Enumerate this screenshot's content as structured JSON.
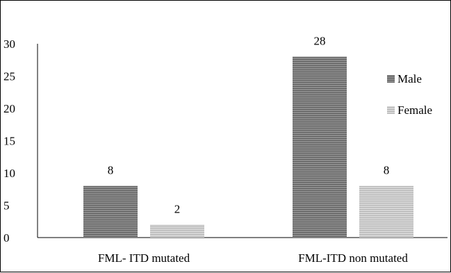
{
  "chart_data": {
    "type": "bar",
    "title": "",
    "xlabel": "",
    "ylabel": "",
    "categories": [
      "FML- ITD mutated",
      "FML-ITD non mutated"
    ],
    "series": [
      {
        "name": "Male",
        "values": [
          8,
          28
        ],
        "color": "#7a7a7a",
        "pattern": "horizontal-lines"
      },
      {
        "name": "Female",
        "values": [
          2,
          8
        ],
        "color": "#c8c8c8",
        "pattern": "horizontal-lines"
      }
    ],
    "ylim": [
      0,
      30
    ],
    "yticks": [
      "0",
      "5",
      "10",
      "15",
      "20",
      "25",
      "30"
    ],
    "data_labels": true,
    "grid": false,
    "legend_position": "right"
  }
}
